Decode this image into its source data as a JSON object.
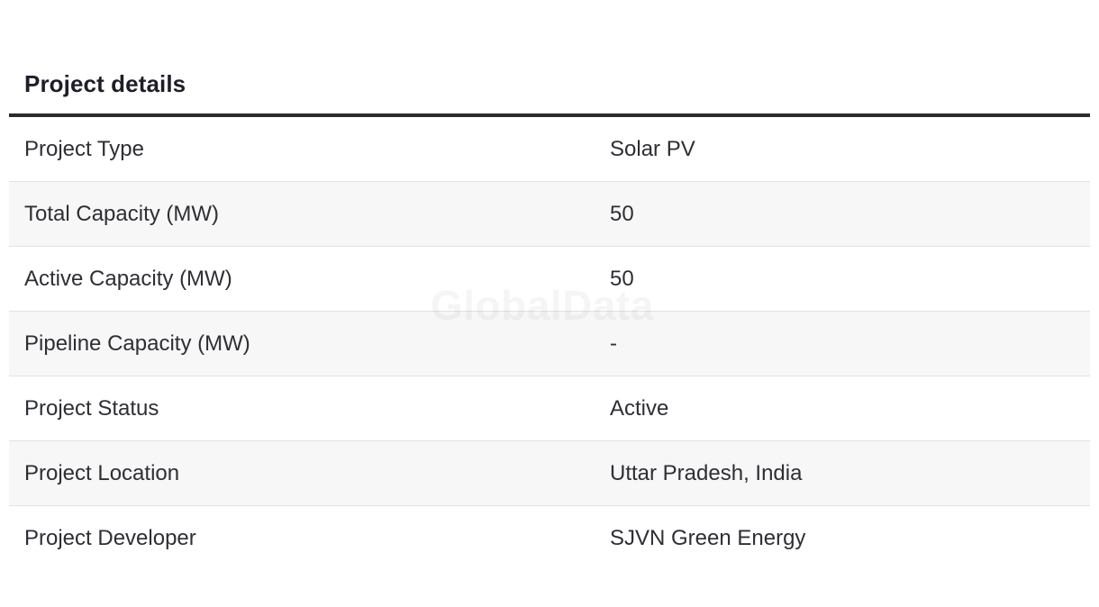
{
  "section": {
    "title": "Project details"
  },
  "watermark": "GlobalData",
  "rows": [
    {
      "label": "Project Type",
      "value": "Solar PV"
    },
    {
      "label": "Total Capacity (MW)",
      "value": "50"
    },
    {
      "label": "Active Capacity (MW)",
      "value": "50"
    },
    {
      "label": "Pipeline Capacity (MW)",
      "value": "-"
    },
    {
      "label": "Project Status",
      "value": "Active"
    },
    {
      "label": "Project Location",
      "value": "Uttar Pradesh, India"
    },
    {
      "label": "Project Developer",
      "value": "SJVN Green Energy"
    }
  ]
}
